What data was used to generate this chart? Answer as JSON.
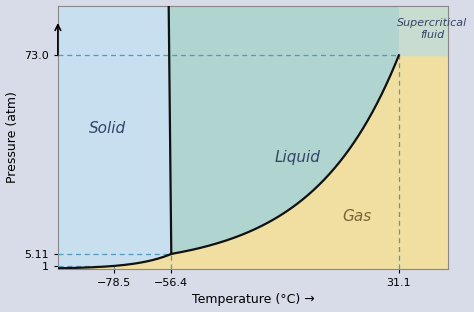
{
  "xlabel": "Temperature (°C) →",
  "ylabel": "Pressure (atm)",
  "xlim": [
    -100,
    50
  ],
  "ylim": [
    0,
    90
  ],
  "triple_point": [
    -56.4,
    5.11
  ],
  "critical_point": [
    31.1,
    73.0
  ],
  "sublimation_pt_T": -78.5,
  "sublimation_pt_P": 1.0,
  "color_solid": "#c8dff0",
  "color_liquid": "#b0d4d0",
  "color_gas": "#f0dfa0",
  "color_supercritical": "#c8ddd0",
  "color_background": "#d8dbe8",
  "label_solid": "Solid",
  "label_liquid": "Liquid",
  "label_gas": "Gas",
  "label_supercritical": "Supercritical\nfluid",
  "dashed_color": "#5599bb",
  "line_color": "#111111",
  "font_size_labels": 9,
  "font_size_region": 11
}
